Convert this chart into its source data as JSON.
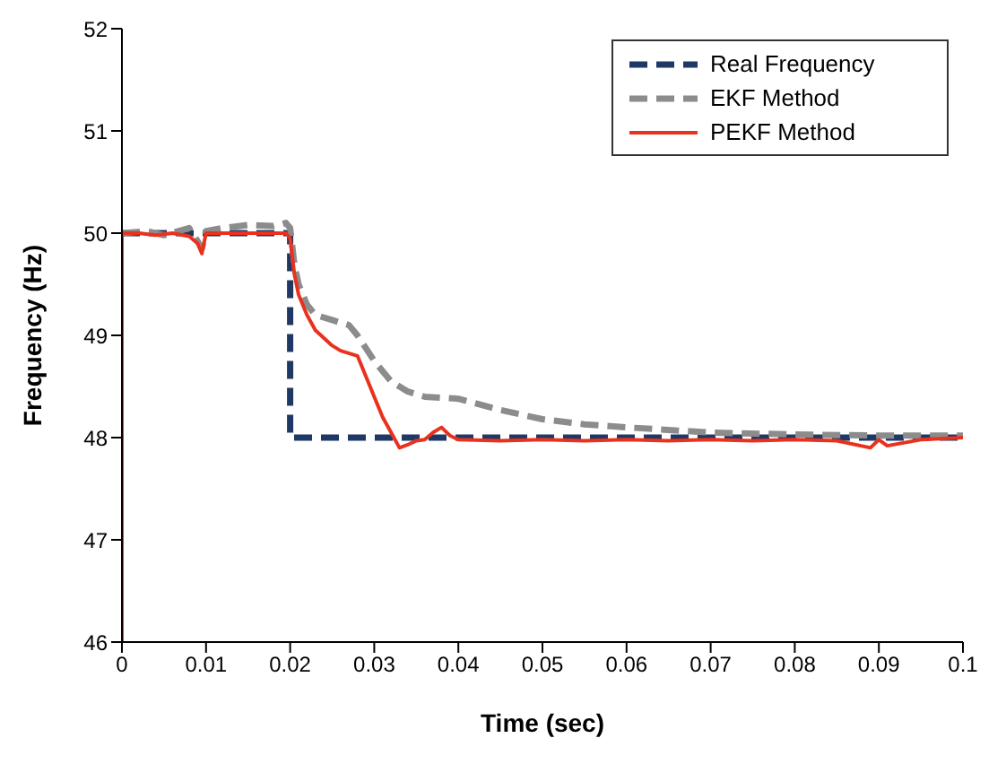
{
  "chart_data": {
    "type": "line",
    "xlabel": "Time (sec)",
    "ylabel": "Frequency (Hz)",
    "xlim": [
      0,
      0.1
    ],
    "xticks": [
      0,
      0.01,
      0.02,
      0.03,
      0.04,
      0.05,
      0.06,
      0.07,
      0.08,
      0.09,
      0.1
    ],
    "ylim": [
      46,
      52
    ],
    "yticks": [
      46,
      47,
      48,
      49,
      50,
      51,
      52
    ],
    "grid": false,
    "legend": "top right",
    "marker": "none",
    "series": [
      {
        "name": "Real Frequency",
        "color": "#1f3864",
        "line_style": "dashed",
        "x": [
          0,
          0.02,
          0.02,
          0.1
        ],
        "values": [
          50,
          50,
          48,
          48
        ]
      },
      {
        "name": "EKF Method",
        "color": "#8c8c8c",
        "line_style": "dashed",
        "x": [
          0,
          0.003,
          0.005,
          0.008,
          0.009,
          0.0095,
          0.01,
          0.012,
          0.015,
          0.018,
          0.0195,
          0.02,
          0.0205,
          0.021,
          0.022,
          0.023,
          0.025,
          0.027,
          0.028,
          0.03,
          0.032,
          0.034,
          0.036,
          0.04,
          0.045,
          0.05,
          0.055,
          0.06,
          0.07,
          0.08,
          0.09,
          0.1
        ],
        "values": [
          50,
          50.02,
          49.98,
          50.05,
          49.92,
          49.85,
          50.02,
          50.05,
          50.08,
          50.07,
          50.1,
          50.05,
          49.7,
          49.5,
          49.3,
          49.2,
          49.15,
          49.1,
          49.0,
          48.75,
          48.55,
          48.45,
          48.4,
          48.38,
          48.27,
          48.18,
          48.13,
          48.1,
          48.05,
          48.03,
          48.02,
          48.02
        ]
      },
      {
        "name": "PEKF Method",
        "color": "#e8321e",
        "line_style": "solid",
        "x": [
          0,
          0,
          0.002,
          0.004,
          0.006,
          0.008,
          0.009,
          0.0095,
          0.01,
          0.012,
          0.015,
          0.018,
          0.0195,
          0.02,
          0.0205,
          0.021,
          0.022,
          0.023,
          0.025,
          0.026,
          0.028,
          0.029,
          0.03,
          0.031,
          0.032,
          0.033,
          0.034,
          0.035,
          0.036,
          0.037,
          0.038,
          0.039,
          0.04,
          0.045,
          0.05,
          0.055,
          0.06,
          0.065,
          0.07,
          0.075,
          0.08,
          0.085,
          0.089,
          0.09,
          0.091,
          0.095,
          0.1
        ],
        "values": [
          46,
          50,
          50,
          49.98,
          50,
          49.97,
          49.9,
          49.8,
          50,
          50,
          50,
          50,
          50,
          49.95,
          49.6,
          49.4,
          49.2,
          49.05,
          48.9,
          48.85,
          48.8,
          48.6,
          48.4,
          48.2,
          48.05,
          47.9,
          47.93,
          47.97,
          47.98,
          48.05,
          48.1,
          48.02,
          47.98,
          47.97,
          47.98,
          47.97,
          47.98,
          47.97,
          47.98,
          47.97,
          47.98,
          47.97,
          47.9,
          47.98,
          47.92,
          47.98,
          48.0
        ]
      }
    ]
  }
}
